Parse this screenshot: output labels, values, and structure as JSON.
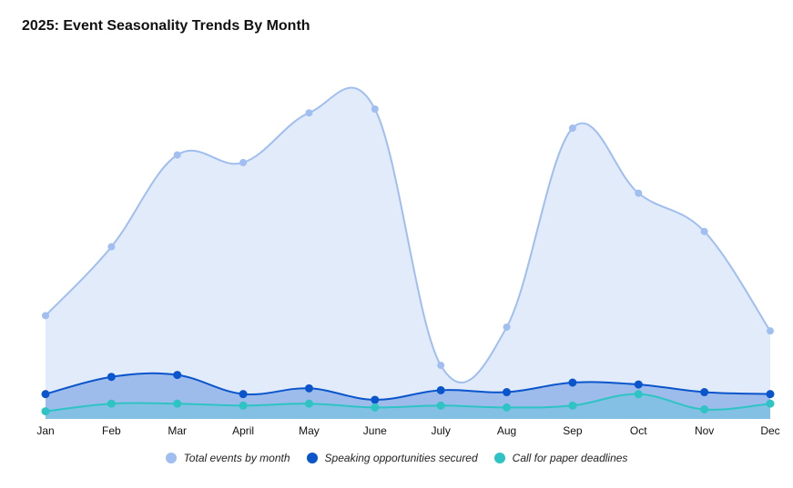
{
  "chart_data": {
    "type": "area",
    "title": "2025: Event Seasonality Trends By Month",
    "categories": [
      "Jan",
      "Feb",
      "Mar",
      "April",
      "May",
      "June",
      "July",
      "Aug",
      "Sep",
      "Oct",
      "Nov",
      "Dec"
    ],
    "xlabel": "",
    "ylabel": "",
    "ylim": [
      0,
      100
    ],
    "grid": false,
    "legend_position": "bottom",
    "series": [
      {
        "name": "Total events by month",
        "color": "#a0bef0",
        "fill": "#e1ebfa",
        "values": [
          27,
          45,
          69,
          67,
          80,
          81,
          14,
          24,
          76,
          59,
          49,
          23
        ]
      },
      {
        "name": "Speaking opportunities secured",
        "color": "#0b55cc",
        "fill": "#9dbcec",
        "values": [
          6.5,
          11,
          11.5,
          6.5,
          8,
          5,
          7.5,
          7,
          9.5,
          9,
          7,
          6.5
        ]
      },
      {
        "name": "Call for paper deadlines",
        "color": "#2ec4c4",
        "fill": "#84bfe4",
        "values": [
          2,
          4,
          4,
          3.5,
          4,
          3,
          3.5,
          3,
          3.5,
          6.5,
          2.5,
          4
        ]
      }
    ]
  }
}
